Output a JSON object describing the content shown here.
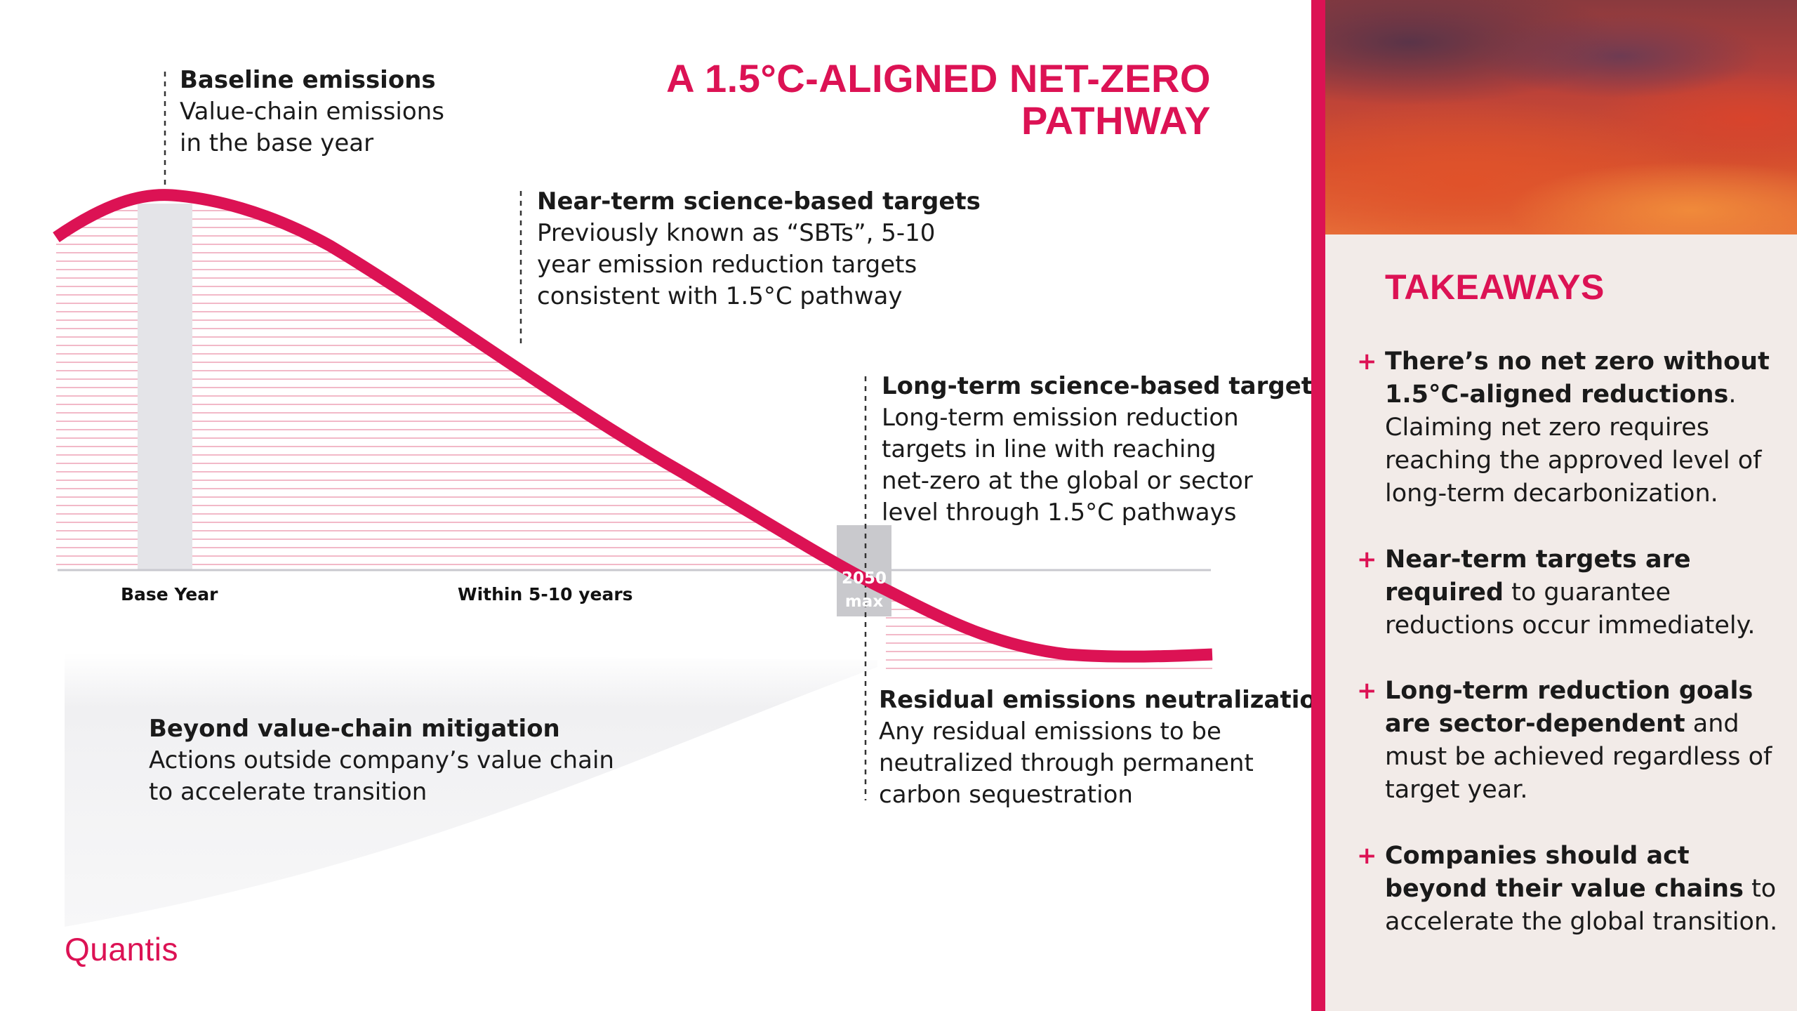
{
  "title": {
    "line1": "A 1.5°C-ALIGNED NET-ZERO",
    "line2": "PATHWAY"
  },
  "annotations": {
    "baseline": {
      "heading": "Baseline emissions",
      "lines": [
        "Value-chain emissions",
        "in the base year"
      ]
    },
    "near_term": {
      "heading": "Near-term science-based targets",
      "lines": [
        "Previously known as “SBTs”, 5-10",
        "year emission reduction targets",
        "consistent with 1.5°C pathway"
      ]
    },
    "long_term": {
      "heading": "Long-term science-based targets",
      "lines": [
        "Long-term emission reduction",
        "targets in line with reaching",
        "net-zero at the global or sector",
        "level through 1.5°C pathways"
      ]
    },
    "residual": {
      "heading": "Residual emissions neutralization",
      "lines": [
        "Any residual emissions to be",
        "neutralized through permanent",
        "carbon sequestration"
      ]
    },
    "beyond": {
      "heading": "Beyond value-chain mitigation",
      "lines": [
        "Actions outside company’s value chain",
        "to accelerate transition"
      ]
    }
  },
  "axis": {
    "base_year": "Base Year",
    "within": "Within 5-10 years",
    "marker_2050": [
      "2050",
      "max"
    ]
  },
  "logo": "Quantis",
  "sidebar": {
    "heading": "TAKEAWAYS",
    "items": [
      {
        "bold": "There’s no net zero without 1.5°C-aligned reductions",
        "rest": ". Claiming net zero requires reaching the approved level of long-term decarbonization."
      },
      {
        "bold": "Near-term targets are required",
        "rest": " to guarantee reductions occur immediately."
      },
      {
        "bold": "Long-term reduction goals are sector-dependent",
        "rest": " and must be achieved regardless of target year."
      },
      {
        "bold": "Companies should act beyond their value chains",
        "rest": " to accelerate the global transition."
      }
    ]
  },
  "colors": {
    "accent": "#dc1254",
    "stripe": "#f2b9c8",
    "base_bar": "#e4e4e8",
    "marker_box": "#c8c8cc",
    "sidebar_bg": "#f2ebe8"
  }
}
